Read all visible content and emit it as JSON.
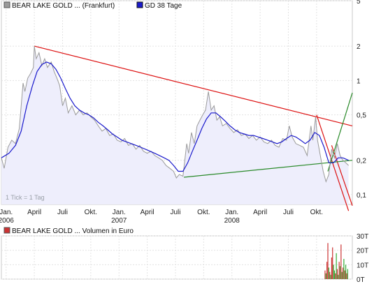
{
  "chart_data": [
    {
      "type": "line",
      "scale": "log",
      "legend": [
        {
          "label": "BEAR LAKE GOLD ... (Frankfurt)",
          "color": "#9a9a9a"
        },
        {
          "label": "GD 38 Tage",
          "color": "#1a1acc"
        }
      ],
      "legend_placement": "top-left",
      "y_ticks": [
        "5",
        "2",
        "1",
        "0,5",
        "0,2",
        "0,1"
      ],
      "y_tick_values": [
        5,
        2,
        1,
        0.5,
        0.2,
        0.1
      ],
      "ylim": [
        0.082,
        5.0
      ],
      "x_ticks": [
        {
          "label": "Jan.",
          "sub": "2006",
          "m": 0
        },
        {
          "label": "April",
          "sub": "",
          "m": 3
        },
        {
          "label": "Juli",
          "sub": "",
          "m": 6
        },
        {
          "label": "Okt.",
          "sub": "",
          "m": 9
        },
        {
          "label": "Jan.",
          "sub": "2007",
          "m": 12
        },
        {
          "label": "April",
          "sub": "",
          "m": 15
        },
        {
          "label": "Juli",
          "sub": "",
          "m": 18
        },
        {
          "label": "Okt.",
          "sub": "",
          "m": 21
        },
        {
          "label": "Jan.",
          "sub": "2008",
          "m": 24
        },
        {
          "label": "April",
          "sub": "",
          "m": 27
        },
        {
          "label": "Juli",
          "sub": "",
          "m": 30
        },
        {
          "label": "Okt.",
          "sub": "",
          "m": 33
        }
      ],
      "xlim_months": [
        -0.5,
        36.8
      ],
      "note": "1 Tick = 1 Tag",
      "price_series": {
        "name": "BEAR LAKE GOLD ... (Frankfurt)",
        "points": [
          [
            -0.5,
            0.21
          ],
          [
            -0.2,
            0.17
          ],
          [
            0.2,
            0.26
          ],
          [
            0.6,
            0.3
          ],
          [
            1.0,
            0.28
          ],
          [
            1.4,
            0.38
          ],
          [
            1.8,
            0.95
          ],
          [
            2.0,
            0.8
          ],
          [
            2.3,
            1.05
          ],
          [
            2.6,
            1.15
          ],
          [
            2.9,
            1.3
          ],
          [
            3.0,
            2.0
          ],
          [
            3.2,
            1.55
          ],
          [
            3.5,
            1.75
          ],
          [
            3.8,
            1.35
          ],
          [
            4.1,
            1.55
          ],
          [
            4.4,
            1.3
          ],
          [
            4.8,
            1.45
          ],
          [
            5.1,
            1.2
          ],
          [
            5.4,
            1.05
          ],
          [
            5.7,
            0.9
          ],
          [
            6.0,
            0.6
          ],
          [
            6.3,
            0.7
          ],
          [
            6.6,
            0.52
          ],
          [
            7.0,
            0.6
          ],
          [
            7.4,
            0.5
          ],
          [
            7.8,
            0.55
          ],
          [
            8.2,
            0.5
          ],
          [
            8.6,
            0.52
          ],
          [
            9.0,
            0.48
          ],
          [
            9.4,
            0.45
          ],
          [
            9.8,
            0.4
          ],
          [
            10.2,
            0.36
          ],
          [
            10.6,
            0.38
          ],
          [
            11.0,
            0.33
          ],
          [
            11.4,
            0.34
          ],
          [
            11.8,
            0.3
          ],
          [
            12.2,
            0.29
          ],
          [
            12.6,
            0.31
          ],
          [
            13.0,
            0.27
          ],
          [
            13.4,
            0.28
          ],
          [
            13.8,
            0.25
          ],
          [
            14.2,
            0.27
          ],
          [
            14.6,
            0.24
          ],
          [
            15.0,
            0.23
          ],
          [
            15.4,
            0.24
          ],
          [
            15.8,
            0.22
          ],
          [
            16.2,
            0.21
          ],
          [
            16.6,
            0.2
          ],
          [
            17.0,
            0.18
          ],
          [
            17.4,
            0.17
          ],
          [
            17.8,
            0.16
          ],
          [
            18.1,
            0.14
          ],
          [
            18.4,
            0.15
          ],
          [
            18.8,
            0.145
          ],
          [
            19.2,
            0.28
          ],
          [
            19.4,
            0.23
          ],
          [
            19.7,
            0.35
          ],
          [
            20.0,
            0.28
          ],
          [
            20.3,
            0.4
          ],
          [
            20.6,
            0.45
          ],
          [
            20.9,
            0.5
          ],
          [
            21.2,
            0.55
          ],
          [
            21.5,
            0.8
          ],
          [
            21.8,
            0.55
          ],
          [
            22.1,
            0.6
          ],
          [
            22.4,
            0.45
          ],
          [
            22.7,
            0.48
          ],
          [
            23.0,
            0.4
          ],
          [
            23.4,
            0.42
          ],
          [
            23.8,
            0.38
          ],
          [
            24.2,
            0.35
          ],
          [
            24.6,
            0.37
          ],
          [
            25.0,
            0.33
          ],
          [
            25.4,
            0.34
          ],
          [
            25.8,
            0.31
          ],
          [
            26.2,
            0.33
          ],
          [
            26.6,
            0.3
          ],
          [
            27.0,
            0.32
          ],
          [
            27.4,
            0.29
          ],
          [
            27.8,
            0.28
          ],
          [
            28.2,
            0.3
          ],
          [
            28.6,
            0.27
          ],
          [
            29.0,
            0.26
          ],
          [
            29.4,
            0.31
          ],
          [
            29.8,
            0.3
          ],
          [
            30.1,
            0.4
          ],
          [
            30.4,
            0.32
          ],
          [
            30.8,
            0.28
          ],
          [
            31.2,
            0.27
          ],
          [
            31.6,
            0.26
          ],
          [
            32.0,
            0.22
          ],
          [
            32.4,
            0.4
          ],
          [
            32.6,
            0.3
          ],
          [
            32.9,
            0.48
          ],
          [
            33.1,
            0.3
          ],
          [
            33.4,
            0.22
          ],
          [
            33.7,
            0.16
          ],
          [
            34.0,
            0.13
          ],
          [
            34.3,
            0.15
          ],
          [
            34.6,
            0.25
          ],
          [
            34.9,
            0.21
          ],
          [
            35.2,
            0.28
          ],
          [
            35.5,
            0.22
          ],
          [
            35.8,
            0.2
          ],
          [
            36.1,
            0.19
          ],
          [
            36.4,
            0.18
          ]
        ]
      },
      "ma_series": {
        "name": "GD 38 Tage",
        "points": [
          [
            -0.5,
            0.21
          ],
          [
            0.3,
            0.23
          ],
          [
            1.0,
            0.27
          ],
          [
            1.6,
            0.36
          ],
          [
            2.2,
            0.6
          ],
          [
            2.8,
            0.9
          ],
          [
            3.3,
            1.2
          ],
          [
            3.8,
            1.38
          ],
          [
            4.3,
            1.45
          ],
          [
            4.8,
            1.4
          ],
          [
            5.3,
            1.25
          ],
          [
            5.8,
            1.05
          ],
          [
            6.3,
            0.85
          ],
          [
            6.8,
            0.7
          ],
          [
            7.3,
            0.6
          ],
          [
            7.8,
            0.55
          ],
          [
            8.3,
            0.52
          ],
          [
            8.8,
            0.5
          ],
          [
            9.3,
            0.47
          ],
          [
            9.8,
            0.43
          ],
          [
            10.3,
            0.4
          ],
          [
            10.8,
            0.37
          ],
          [
            11.3,
            0.34
          ],
          [
            11.8,
            0.32
          ],
          [
            12.3,
            0.3
          ],
          [
            12.8,
            0.29
          ],
          [
            13.3,
            0.28
          ],
          [
            13.8,
            0.27
          ],
          [
            14.3,
            0.26
          ],
          [
            14.8,
            0.25
          ],
          [
            15.3,
            0.24
          ],
          [
            15.8,
            0.23
          ],
          [
            16.3,
            0.22
          ],
          [
            16.8,
            0.21
          ],
          [
            17.3,
            0.2
          ],
          [
            17.8,
            0.18
          ],
          [
            18.3,
            0.16
          ],
          [
            18.8,
            0.16
          ],
          [
            19.3,
            0.19
          ],
          [
            19.8,
            0.24
          ],
          [
            20.3,
            0.3
          ],
          [
            20.8,
            0.38
          ],
          [
            21.3,
            0.46
          ],
          [
            21.8,
            0.52
          ],
          [
            22.3,
            0.52
          ],
          [
            22.8,
            0.48
          ],
          [
            23.3,
            0.44
          ],
          [
            23.8,
            0.4
          ],
          [
            24.3,
            0.37
          ],
          [
            24.8,
            0.35
          ],
          [
            25.3,
            0.34
          ],
          [
            25.8,
            0.33
          ],
          [
            26.3,
            0.33
          ],
          [
            26.8,
            0.32
          ],
          [
            27.3,
            0.31
          ],
          [
            27.8,
            0.3
          ],
          [
            28.3,
            0.29
          ],
          [
            28.8,
            0.28
          ],
          [
            29.3,
            0.29
          ],
          [
            29.8,
            0.31
          ],
          [
            30.3,
            0.33
          ],
          [
            30.8,
            0.32
          ],
          [
            31.3,
            0.3
          ],
          [
            31.8,
            0.28
          ],
          [
            32.3,
            0.3
          ],
          [
            32.8,
            0.35
          ],
          [
            33.3,
            0.33
          ],
          [
            33.8,
            0.26
          ],
          [
            34.3,
            0.19
          ],
          [
            34.8,
            0.19
          ],
          [
            35.3,
            0.21
          ],
          [
            35.8,
            0.21
          ],
          [
            36.4,
            0.2
          ]
        ]
      },
      "trendlines": [
        {
          "color": "#dd1111",
          "from": [
            3.0,
            2.0
          ],
          "to": [
            36.8,
            0.4
          ]
        },
        {
          "color": "#dd1111",
          "from": [
            33.0,
            0.5
          ],
          "to": [
            36.4,
            0.072
          ]
        },
        {
          "color": "#dd1111",
          "from": [
            34.6,
            0.27
          ],
          "to": [
            36.8,
            0.08
          ]
        },
        {
          "color": "#2a8a2a",
          "from": [
            18.9,
            0.142
          ],
          "to": [
            36.8,
            0.2
          ]
        },
        {
          "color": "#2a8a2a",
          "from": [
            34.2,
            0.16
          ],
          "to": [
            36.8,
            0.78
          ]
        }
      ],
      "fill_color": "#eeeefc"
    },
    {
      "type": "bar",
      "legend": [
        {
          "label": "BEAR LAKE GOLD ... Volumen in Euro",
          "color": "#cc3333"
        }
      ],
      "legend_placement": "top-left",
      "y_ticks": [
        "30T",
        "20T",
        "10T",
        "0T"
      ],
      "y_tick_values": [
        30,
        20,
        10,
        0
      ],
      "ylim": [
        0,
        30
      ],
      "unit": "T",
      "bars": [
        [
          33.9,
          6,
          "#cc3333"
        ],
        [
          34.0,
          4,
          "#33aa33"
        ],
        [
          34.1,
          12,
          "#cc3333"
        ],
        [
          34.2,
          25,
          "#cc3333"
        ],
        [
          34.3,
          8,
          "#33aa33"
        ],
        [
          34.4,
          5,
          "#cc3333"
        ],
        [
          34.5,
          3,
          "#33aa33"
        ],
        [
          34.6,
          15,
          "#cc3333"
        ],
        [
          34.7,
          22,
          "#cc3333"
        ],
        [
          34.8,
          10,
          "#33aa33"
        ],
        [
          34.9,
          6,
          "#33aa33"
        ],
        [
          35.0,
          4,
          "#cc3333"
        ],
        [
          35.1,
          18,
          "#33aa33"
        ],
        [
          35.2,
          7,
          "#cc3333"
        ],
        [
          35.3,
          3,
          "#33aa33"
        ],
        [
          35.4,
          12,
          "#cc3333"
        ],
        [
          35.5,
          9,
          "#33aa33"
        ],
        [
          35.6,
          24,
          "#cc3333"
        ],
        [
          35.7,
          5,
          "#33aa33"
        ],
        [
          35.8,
          8,
          "#cc3333"
        ],
        [
          35.9,
          14,
          "#33aa33"
        ],
        [
          36.0,
          6,
          "#cc3333"
        ],
        [
          36.1,
          10,
          "#33aa33"
        ],
        [
          36.2,
          4,
          "#cc3333"
        ],
        [
          36.3,
          7,
          "#33aa33"
        ]
      ]
    }
  ]
}
